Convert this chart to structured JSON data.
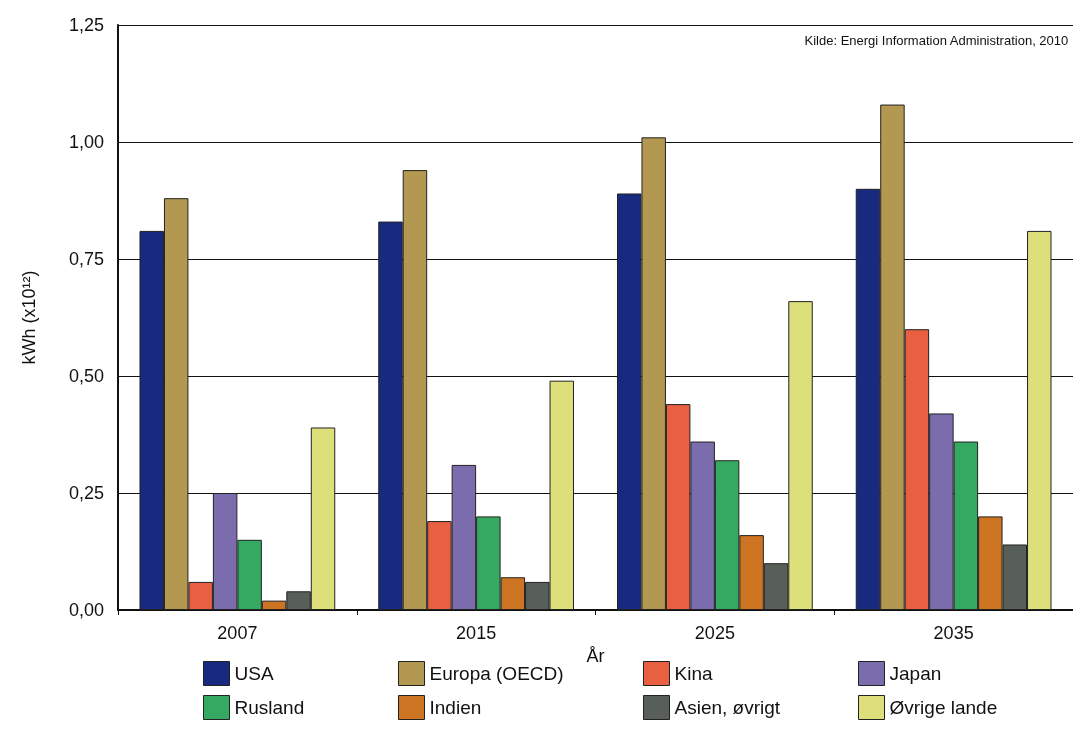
{
  "chart_data": {
    "type": "bar",
    "categories": [
      "2007",
      "2015",
      "2025",
      "2035"
    ],
    "xlabel": "År",
    "ylabel": "kWh (x10¹²)",
    "annotations": [
      "Kilde: Energi Information Administration, 2010"
    ],
    "series": [
      {
        "name": "USA",
        "color": "#182a80",
        "values": [
          0.81,
          0.83,
          0.89,
          0.9
        ]
      },
      {
        "name": "Europa (OECD)",
        "color": "#b29850",
        "values": [
          0.88,
          0.94,
          1.01,
          1.08
        ]
      },
      {
        "name": "Kina",
        "color": "#e85f42",
        "values": [
          0.06,
          0.19,
          0.44,
          0.6
        ]
      },
      {
        "name": "Japan",
        "color": "#7b6dad",
        "values": [
          0.25,
          0.31,
          0.36,
          0.42
        ]
      },
      {
        "name": "Rusland",
        "color": "#35a862",
        "values": [
          0.15,
          0.2,
          0.32,
          0.36
        ]
      },
      {
        "name": "Indien",
        "color": "#cc7422",
        "values": [
          0.02,
          0.07,
          0.16,
          0.2
        ]
      },
      {
        "name": "Asien, øvrigt",
        "color": "#585e58",
        "values": [
          0.04,
          0.06,
          0.1,
          0.14
        ]
      },
      {
        "name": "Øvrige lande",
        "color": "#dde07a",
        "values": [
          0.39,
          0.49,
          0.66,
          0.81
        ]
      }
    ],
    "ylim": [
      0,
      1.25
    ],
    "yticks": [
      {
        "value": 0,
        "label": "0,00"
      },
      {
        "value": 0.25,
        "label": "0,25"
      },
      {
        "value": 0.5,
        "label": "0,50"
      },
      {
        "value": 0.75,
        "label": "0,75"
      },
      {
        "value": 1,
        "label": "1,00"
      },
      {
        "value": 1.25,
        "label": "1,25"
      }
    ],
    "grid": "y",
    "legend": "bottom"
  }
}
